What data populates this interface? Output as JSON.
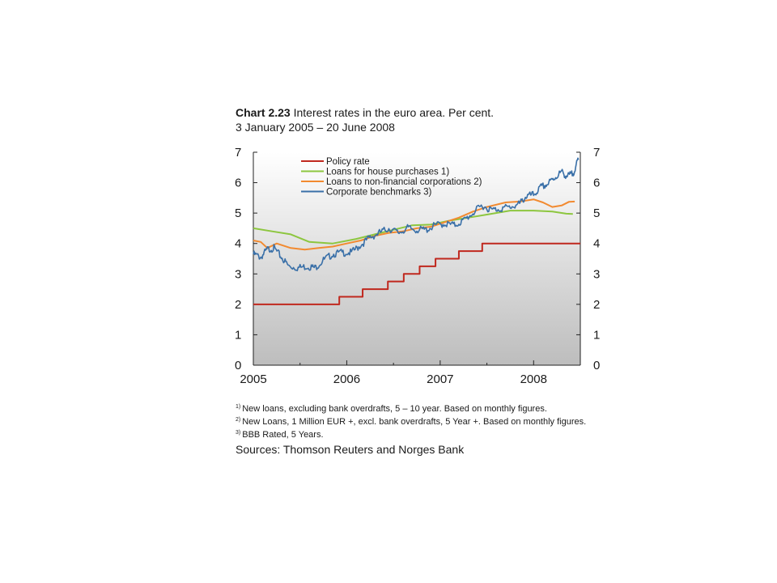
{
  "header": {
    "chart_number": "Chart 2.23",
    "title": "Interest rates in the euro area. Per cent.",
    "subtitle": "3 January 2005 – 20 June 2008"
  },
  "footnotes": [
    {
      "mark": "1)",
      "text": "New loans, excluding bank overdrafts, 5 – 10 year. Based on monthly figures."
    },
    {
      "mark": "2)",
      "text": "New Loans, 1 Million EUR +, excl. bank overdrafts, 5 Year +. Based on monthly figures."
    },
    {
      "mark": "3)",
      "text": "BBB Rated, 5 Years."
    }
  ],
  "sources": "Sources: Thomson Reuters and Norges Bank",
  "chart_data": {
    "type": "line",
    "x_unit": "year",
    "xlim": [
      2005.0,
      2008.5
    ],
    "xticks": [
      "2005",
      "2006",
      "2007",
      "2008"
    ],
    "ylim": [
      0,
      7
    ],
    "yticks": [
      "0",
      "1",
      "2",
      "3",
      "4",
      "5",
      "6",
      "7"
    ],
    "legend_position": "top-left",
    "grid": false,
    "series": [
      {
        "name": "Policy rate",
        "color": "#c0281e",
        "step": true,
        "points": [
          [
            2005.0,
            2.0
          ],
          [
            2005.92,
            2.25
          ],
          [
            2006.17,
            2.5
          ],
          [
            2006.44,
            2.75
          ],
          [
            2006.61,
            3.0
          ],
          [
            2006.78,
            3.25
          ],
          [
            2006.95,
            3.5
          ],
          [
            2007.2,
            3.75
          ],
          [
            2007.45,
            4.0
          ],
          [
            2008.5,
            4.0
          ]
        ]
      },
      {
        "name": "Loans for house purchases 1)",
        "color": "#8dc63f",
        "step": false,
        "points": [
          [
            2005.0,
            4.5
          ],
          [
            2005.2,
            4.4
          ],
          [
            2005.4,
            4.3
          ],
          [
            2005.6,
            4.05
          ],
          [
            2005.85,
            4.0
          ],
          [
            2006.1,
            4.15
          ],
          [
            2006.3,
            4.3
          ],
          [
            2006.5,
            4.45
          ],
          [
            2006.7,
            4.6
          ],
          [
            2006.9,
            4.62
          ],
          [
            2007.1,
            4.75
          ],
          [
            2007.3,
            4.85
          ],
          [
            2007.5,
            4.95
          ],
          [
            2007.75,
            5.08
          ],
          [
            2008.0,
            5.08
          ],
          [
            2008.2,
            5.05
          ],
          [
            2008.35,
            4.98
          ],
          [
            2008.42,
            4.97
          ]
        ]
      },
      {
        "name": "Loans to non-financial corporations 2)",
        "color": "#f28a30",
        "step": false,
        "points": [
          [
            2005.0,
            4.1
          ],
          [
            2005.08,
            4.05
          ],
          [
            2005.15,
            3.85
          ],
          [
            2005.25,
            4.0
          ],
          [
            2005.4,
            3.85
          ],
          [
            2005.55,
            3.8
          ],
          [
            2005.7,
            3.85
          ],
          [
            2005.85,
            3.9
          ],
          [
            2006.0,
            4.0
          ],
          [
            2006.15,
            4.1
          ],
          [
            2006.3,
            4.25
          ],
          [
            2006.45,
            4.35
          ],
          [
            2006.6,
            4.4
          ],
          [
            2006.75,
            4.5
          ],
          [
            2006.9,
            4.55
          ],
          [
            2007.05,
            4.7
          ],
          [
            2007.2,
            4.85
          ],
          [
            2007.35,
            5.05
          ],
          [
            2007.5,
            5.2
          ],
          [
            2007.7,
            5.35
          ],
          [
            2007.85,
            5.38
          ],
          [
            2008.0,
            5.45
          ],
          [
            2008.1,
            5.35
          ],
          [
            2008.2,
            5.2
          ],
          [
            2008.3,
            5.25
          ],
          [
            2008.38,
            5.37
          ],
          [
            2008.44,
            5.38
          ]
        ]
      },
      {
        "name": "Corporate benchmarks 3)",
        "color": "#3a70a8",
        "step": false,
        "points": [
          [
            2005.0,
            3.65
          ],
          [
            2005.08,
            3.55
          ],
          [
            2005.15,
            3.8
          ],
          [
            2005.22,
            3.85
          ],
          [
            2005.3,
            3.55
          ],
          [
            2005.38,
            3.25
          ],
          [
            2005.48,
            3.2
          ],
          [
            2005.58,
            3.25
          ],
          [
            2005.66,
            3.2
          ],
          [
            2005.75,
            3.45
          ],
          [
            2005.85,
            3.65
          ],
          [
            2005.95,
            3.7
          ],
          [
            2006.05,
            3.7
          ],
          [
            2006.15,
            3.95
          ],
          [
            2006.25,
            4.2
          ],
          [
            2006.35,
            4.35
          ],
          [
            2006.45,
            4.5
          ],
          [
            2006.55,
            4.35
          ],
          [
            2006.65,
            4.5
          ],
          [
            2006.75,
            4.45
          ],
          [
            2006.85,
            4.45
          ],
          [
            2006.95,
            4.6
          ],
          [
            2007.05,
            4.65
          ],
          [
            2007.15,
            4.6
          ],
          [
            2007.25,
            4.75
          ],
          [
            2007.35,
            5.0
          ],
          [
            2007.45,
            5.25
          ],
          [
            2007.55,
            5.1
          ],
          [
            2007.65,
            5.15
          ],
          [
            2007.75,
            5.2
          ],
          [
            2007.85,
            5.3
          ],
          [
            2007.92,
            5.55
          ],
          [
            2008.0,
            5.6
          ],
          [
            2008.08,
            5.85
          ],
          [
            2008.15,
            5.95
          ],
          [
            2008.22,
            6.15
          ],
          [
            2008.3,
            6.35
          ],
          [
            2008.36,
            6.2
          ],
          [
            2008.42,
            6.3
          ],
          [
            2008.48,
            6.75
          ]
        ]
      }
    ]
  }
}
